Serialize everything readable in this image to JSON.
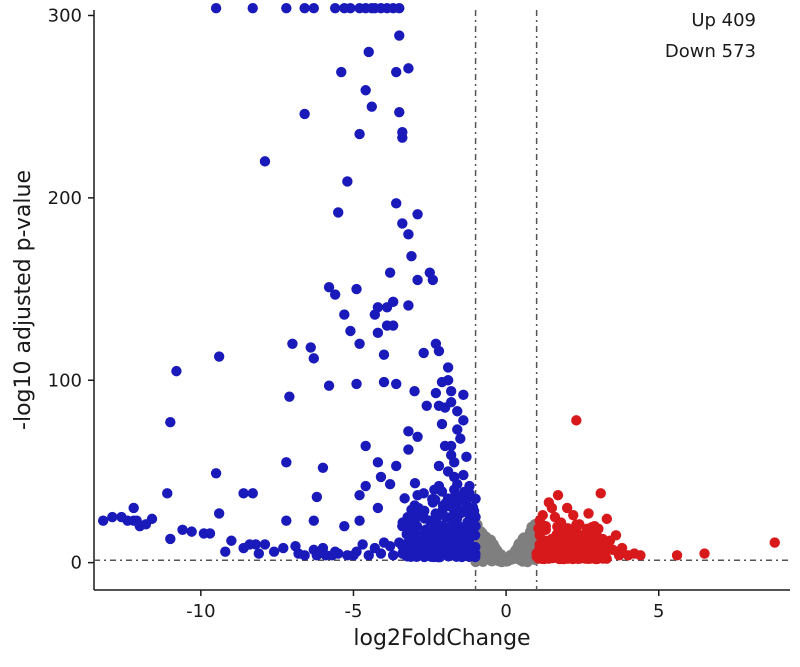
{
  "chart_data": {
    "type": "scatter",
    "xlabel": "log2FoldChange",
    "ylabel": "-log10 adjusted p-value",
    "xlim": [
      -13.5,
      9.3
    ],
    "ylim": [
      -15,
      303
    ],
    "x_ticks": [
      -10,
      -5,
      0,
      5
    ],
    "y_ticks": [
      0,
      100,
      200,
      300
    ],
    "grid": false,
    "annotations": {
      "up": "Up 409",
      "down": "Down 573"
    },
    "thresholds": {
      "log2fc": [
        -1,
        1
      ],
      "padj_line": 1.3
    },
    "colors": {
      "up": "#d7191c",
      "down": "#1a1aba",
      "ns": "#7f7f7f"
    },
    "series": {
      "down": [
        [
          -9.5,
          304
        ],
        [
          -8.3,
          304
        ],
        [
          -7.2,
          304
        ],
        [
          -6.6,
          304
        ],
        [
          -6.3,
          304
        ],
        [
          -5.6,
          304
        ],
        [
          -5.3,
          304
        ],
        [
          -5.1,
          304
        ],
        [
          -4.8,
          304
        ],
        [
          -4.6,
          304
        ],
        [
          -4.4,
          304
        ],
        [
          -4.3,
          304
        ],
        [
          -4.1,
          304
        ],
        [
          -3.9,
          304
        ],
        [
          -3.7,
          304
        ],
        [
          -3.5,
          304
        ],
        [
          -3.5,
          289
        ],
        [
          -4.5,
          280
        ],
        [
          -5.4,
          269
        ],
        [
          -3.6,
          269
        ],
        [
          -3.2,
          271
        ],
        [
          -4.6,
          259
        ],
        [
          -4.4,
          250
        ],
        [
          -6.6,
          246
        ],
        [
          -3.5,
          247
        ],
        [
          -4.8,
          235
        ],
        [
          -3.4,
          233
        ],
        [
          -3.4,
          236
        ],
        [
          -7.9,
          220
        ],
        [
          -5.2,
          209
        ],
        [
          -3.6,
          197
        ],
        [
          -2.9,
          191
        ],
        [
          -5.5,
          192
        ],
        [
          -3.4,
          186
        ],
        [
          -3.2,
          180
        ],
        [
          -3.1,
          168
        ],
        [
          -2.5,
          159
        ],
        [
          -3.8,
          159
        ],
        [
          -2.4,
          155
        ],
        [
          -2.9,
          155
        ],
        [
          -3.7,
          143
        ],
        [
          -5.8,
          151
        ],
        [
          -4.9,
          150
        ],
        [
          -5.6,
          147
        ],
        [
          -4.2,
          140
        ],
        [
          -3.9,
          140
        ],
        [
          -3.2,
          141
        ],
        [
          -4.3,
          136
        ],
        [
          -5.3,
          136
        ],
        [
          -5.1,
          127
        ],
        [
          -3.7,
          130
        ],
        [
          -4.2,
          126
        ],
        [
          -3.9,
          130
        ],
        [
          -2.3,
          120
        ],
        [
          -7.0,
          120
        ],
        [
          -6.4,
          118
        ],
        [
          -4.8,
          120
        ],
        [
          -2.7,
          115
        ],
        [
          -4.0,
          114
        ],
        [
          -2.2,
          116
        ],
        [
          -1.9,
          107
        ],
        [
          -2.1,
          99
        ],
        [
          -9.4,
          113
        ],
        [
          -10.8,
          105
        ],
        [
          -6.3,
          112
        ],
        [
          -1.9,
          100
        ],
        [
          -5.8,
          97
        ],
        [
          -4.9,
          98
        ],
        [
          -4.0,
          99
        ],
        [
          -3.6,
          98
        ],
        [
          -3.0,
          94
        ],
        [
          -2.3,
          93
        ],
        [
          -1.8,
          94
        ],
        [
          -1.4,
          92
        ],
        [
          -7.1,
          91
        ],
        [
          -1.8,
          88
        ],
        [
          -2.2,
          86
        ],
        [
          -2.6,
          86
        ],
        [
          -2.0,
          85
        ],
        [
          -1.6,
          83
        ],
        [
          -11.0,
          77
        ],
        [
          -2.1,
          76
        ],
        [
          -1.4,
          78
        ],
        [
          -1.6,
          73
        ],
        [
          -3.2,
          72
        ],
        [
          -2.9,
          69
        ],
        [
          -1.5,
          68
        ],
        [
          -1.8,
          64
        ],
        [
          -2.0,
          64
        ],
        [
          -4.6,
          64
        ],
        [
          -3.2,
          62
        ],
        [
          -1.8,
          59
        ],
        [
          -1.3,
          58
        ],
        [
          -1.7,
          55
        ],
        [
          -7.2,
          55
        ],
        [
          -6.0,
          52
        ],
        [
          -4.2,
          55
        ],
        [
          -3.6,
          53
        ],
        [
          -2.2,
          53
        ],
        [
          -1.9,
          50
        ],
        [
          -9.5,
          49
        ],
        [
          -1.4,
          48
        ],
        [
          -4.1,
          47
        ],
        [
          -1.7,
          47
        ],
        [
          -3.8,
          43
        ],
        [
          -2.2,
          42
        ],
        [
          -4.6,
          42
        ],
        [
          -1.6,
          43
        ],
        [
          -1.2,
          42
        ],
        [
          -2.1,
          39
        ],
        [
          -2.7,
          38
        ],
        [
          -11.1,
          38
        ],
        [
          -8.6,
          38
        ],
        [
          -8.3,
          38
        ],
        [
          -4.8,
          37
        ],
        [
          -6.2,
          36
        ],
        [
          -2.9,
          37
        ],
        [
          -1.9,
          35
        ],
        [
          -1.6,
          33
        ],
        [
          -1.3,
          31
        ],
        [
          -4.2,
          30
        ],
        [
          -12.2,
          30
        ],
        [
          -3.1,
          29
        ],
        [
          -1.5,
          27
        ],
        [
          -9.4,
          27
        ],
        [
          -12.6,
          25
        ],
        [
          -12.9,
          25
        ],
        [
          -11.6,
          24
        ],
        [
          -7.2,
          23
        ],
        [
          -6.3,
          23
        ],
        [
          -4.8,
          23
        ],
        [
          -2.5,
          23
        ],
        [
          -1.2,
          26
        ],
        [
          -1.8,
          25
        ],
        [
          -12.4,
          23
        ],
        [
          -12.1,
          23
        ],
        [
          -11.8,
          21
        ],
        [
          -12.0,
          20
        ],
        [
          -10.6,
          18
        ],
        [
          -10.3,
          17
        ],
        [
          -9.9,
          16
        ],
        [
          -9.7,
          16
        ],
        [
          -5.3,
          20
        ],
        [
          -3.4,
          20
        ],
        [
          -1.7,
          21
        ],
        [
          -13.2,
          23
        ],
        [
          -12.2,
          23
        ],
        [
          -11.0,
          13
        ],
        [
          -9.0,
          12
        ],
        [
          -8.4,
          10
        ],
        [
          -8.2,
          10
        ],
        [
          -7.9,
          10
        ],
        [
          -7.3,
          8
        ],
        [
          -6.9,
          9
        ],
        [
          -6.3,
          7
        ],
        [
          -6.0,
          8
        ],
        [
          -5.5,
          5
        ],
        [
          -5.2,
          4
        ],
        [
          -4.7,
          10
        ],
        [
          -4.3,
          8
        ],
        [
          -4.0,
          11
        ],
        [
          -3.8,
          9
        ],
        [
          -3.5,
          11
        ],
        [
          -3.3,
          7
        ],
        [
          -3.1,
          10
        ],
        [
          -2.9,
          8
        ],
        [
          -2.6,
          9
        ],
        [
          -2.3,
          7
        ],
        [
          -2.1,
          11
        ],
        [
          -1.9,
          9
        ],
        [
          -1.7,
          12
        ],
        [
          -1.5,
          10
        ],
        [
          -1.3,
          13
        ],
        [
          -1.2,
          8
        ],
        [
          -1.1,
          15
        ],
        [
          -1.0,
          20
        ],
        [
          -1.2,
          22
        ],
        [
          -1.4,
          18
        ],
        [
          -1.6,
          16
        ],
        [
          -1.8,
          14
        ],
        [
          -2.0,
          17
        ],
        [
          -2.2,
          14
        ],
        [
          -2.4,
          12
        ],
        [
          -8.6,
          8
        ],
        [
          -7.6,
          6
        ],
        [
          -6.6,
          4
        ],
        [
          -6.2,
          4
        ],
        [
          -5.9,
          4
        ],
        [
          -5.7,
          4
        ],
        [
          -5.0,
          4
        ],
        [
          -4.5,
          4
        ],
        [
          -4.1,
          5
        ],
        [
          -3.7,
          4
        ],
        [
          -3.2,
          4
        ],
        [
          -2.8,
          4
        ],
        [
          -2.5,
          5
        ],
        [
          -1.6,
          5
        ],
        [
          -1.1,
          4
        ],
        [
          -1.3,
          6
        ],
        [
          -1.5,
          7
        ],
        [
          -1.8,
          6
        ],
        [
          -2.0,
          6
        ],
        [
          -2.7,
          6
        ],
        [
          -3.0,
          6
        ],
        [
          -3.4,
          5
        ],
        [
          -4.9,
          6
        ],
        [
          -5.6,
          6
        ],
        [
          -6.8,
          5
        ],
        [
          -8.1,
          5
        ],
        [
          -9.2,
          6
        ],
        [
          -1.0,
          25
        ],
        [
          -1.1,
          30
        ],
        [
          -1.3,
          34
        ],
        [
          -1.4,
          28
        ],
        [
          -1.6,
          29
        ],
        [
          -1.9,
          31
        ],
        [
          -2.1,
          28
        ],
        [
          -1.0,
          35
        ],
        [
          -1.2,
          38
        ],
        [
          -1.5,
          36
        ],
        [
          -1.7,
          40
        ],
        [
          -2.4,
          33
        ]
      ],
      "up": [
        [
          2.3,
          78
        ],
        [
          3.1,
          38
        ],
        [
          1.7,
          37
        ],
        [
          1.4,
          33
        ],
        [
          1.5,
          30
        ],
        [
          2.0,
          30
        ],
        [
          1.2,
          26
        ],
        [
          1.6,
          25
        ],
        [
          2.2,
          26
        ],
        [
          2.7,
          27
        ],
        [
          3.3,
          24
        ],
        [
          1.1,
          23
        ],
        [
          1.8,
          22
        ],
        [
          2.4,
          21
        ],
        [
          2.9,
          20
        ],
        [
          3.6,
          15
        ],
        [
          1.3,
          18
        ],
        [
          2.0,
          17
        ],
        [
          2.6,
          16
        ],
        [
          3.0,
          14
        ],
        [
          3.4,
          12
        ],
        [
          1.5,
          13
        ],
        [
          1.9,
          12
        ],
        [
          2.3,
          11
        ],
        [
          3.8,
          8
        ],
        [
          4.2,
          5
        ],
        [
          4.4,
          4
        ],
        [
          4.0,
          4
        ],
        [
          3.7,
          4
        ],
        [
          5.6,
          4
        ],
        [
          6.5,
          5
        ],
        [
          8.8,
          11
        ],
        [
          1.1,
          10
        ],
        [
          1.2,
          7
        ],
        [
          1.4,
          9
        ],
        [
          1.6,
          6
        ],
        [
          1.8,
          8
        ],
        [
          2.1,
          7
        ],
        [
          2.5,
          9
        ],
        [
          2.8,
          6
        ],
        [
          3.2,
          5
        ],
        [
          3.5,
          7
        ],
        [
          1.1,
          15
        ],
        [
          1.3,
          12
        ],
        [
          1.7,
          14
        ],
        [
          2.2,
          15
        ],
        [
          1.0,
          5
        ],
        [
          1.2,
          4
        ],
        [
          1.5,
          4
        ],
        [
          1.9,
          4
        ],
        [
          2.4,
          4
        ],
        [
          3.0,
          4
        ],
        [
          1.3,
          20
        ],
        [
          1.9,
          19
        ]
      ]
    }
  }
}
